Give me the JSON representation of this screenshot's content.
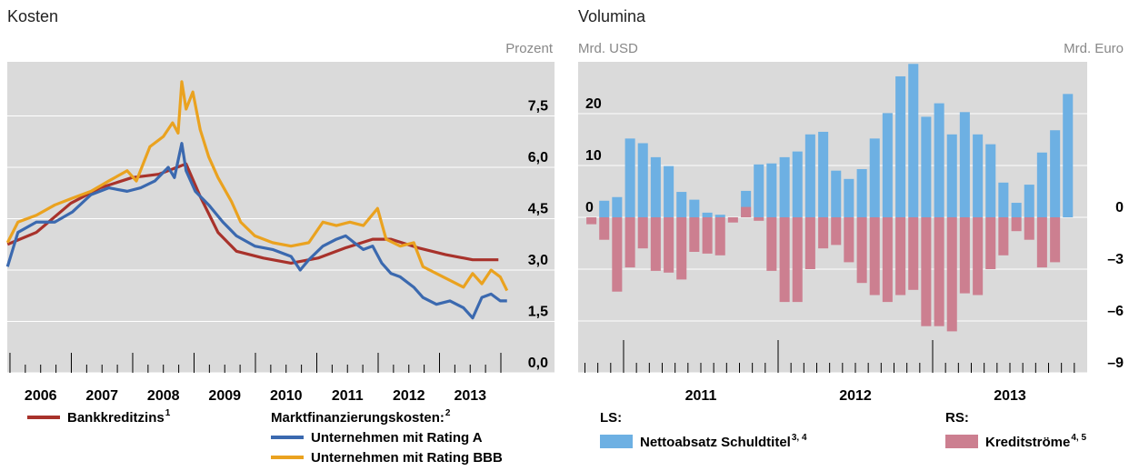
{
  "chart_data": [
    {
      "type": "line",
      "title": "Kosten",
      "y_unit": "Prozent",
      "xlim": [
        2005.956,
        2014.874
      ],
      "xticks": [
        {
          "value": 2006.5,
          "label": "2006"
        },
        {
          "value": 2007.5,
          "label": "2007"
        },
        {
          "value": 2008.5,
          "label": "2008"
        },
        {
          "value": 2009.5,
          "label": "2009"
        },
        {
          "value": 2010.5,
          "label": "2010"
        },
        {
          "value": 2011.5,
          "label": "2011"
        },
        {
          "value": 2012.5,
          "label": "2012"
        },
        {
          "value": 2013.5,
          "label": "2013"
        }
      ],
      "ylim": [
        0,
        9.08
      ],
      "yticks": [
        {
          "value": 0,
          "label": "0,0"
        },
        {
          "value": 1.5,
          "label": "1,5"
        },
        {
          "value": 3,
          "label": "3,0"
        },
        {
          "value": 4.5,
          "label": "4,5"
        },
        {
          "value": 6,
          "label": "6,0"
        },
        {
          "value": 7.5,
          "label": "7,5"
        }
      ],
      "grid": true,
      "legend_heading": "Marktfinanzierungskosten:",
      "legend_heading_note": "2",
      "series": [
        {
          "name": "Bankkreditzins",
          "note": "1",
          "color": "#a8322b",
          "x": [
            2005.96,
            2006.43,
            2006.99,
            2007.47,
            2007.99,
            2008.43,
            2008.87,
            2009.1,
            2009.39,
            2009.69,
            2010.13,
            2010.58,
            2011.02,
            2011.47,
            2011.91,
            2012.21,
            2012.65,
            2013.1,
            2013.54,
            2013.96
          ],
          "values": [
            3.75,
            4.1,
            4.95,
            5.4,
            5.7,
            5.8,
            6.1,
            5.15,
            4.1,
            3.55,
            3.35,
            3.2,
            3.35,
            3.65,
            3.9,
            3.9,
            3.65,
            3.45,
            3.3,
            3.3
          ]
        },
        {
          "name": "Unternehmen mit Rating A",
          "color": "#3b69af",
          "x": [
            2005.96,
            2006.13,
            2006.43,
            2006.73,
            2007.02,
            2007.32,
            2007.61,
            2007.91,
            2008.13,
            2008.36,
            2008.58,
            2008.68,
            2008.8,
            2008.87,
            2009.02,
            2009.24,
            2009.47,
            2009.69,
            2009.99,
            2010.28,
            2010.58,
            2010.73,
            2010.87,
            2011.1,
            2011.32,
            2011.47,
            2011.61,
            2011.76,
            2011.91,
            2012.06,
            2012.21,
            2012.36,
            2012.58,
            2012.73,
            2012.95,
            2013.17,
            2013.39,
            2013.54,
            2013.69,
            2013.84,
            2013.99,
            2014.1
          ],
          "values": [
            3.1,
            4.1,
            4.4,
            4.4,
            4.7,
            5.2,
            5.4,
            5.3,
            5.4,
            5.6,
            6.0,
            5.7,
            6.7,
            5.9,
            5.3,
            4.9,
            4.4,
            4.0,
            3.7,
            3.6,
            3.4,
            3.0,
            3.3,
            3.7,
            3.9,
            4.0,
            3.8,
            3.6,
            3.7,
            3.2,
            2.9,
            2.8,
            2.5,
            2.2,
            2.0,
            2.1,
            1.9,
            1.6,
            2.2,
            2.3,
            2.1,
            2.1
          ]
        },
        {
          "name": "Unternehmen mit Rating BBB",
          "color": "#eaa21f",
          "x": [
            2005.96,
            2006.13,
            2006.43,
            2006.73,
            2007.02,
            2007.32,
            2007.61,
            2007.91,
            2008.06,
            2008.28,
            2008.5,
            2008.65,
            2008.74,
            2008.8,
            2008.87,
            2008.98,
            2009.1,
            2009.24,
            2009.39,
            2009.61,
            2009.76,
            2009.99,
            2010.28,
            2010.58,
            2010.87,
            2011.1,
            2011.32,
            2011.54,
            2011.76,
            2011.99,
            2012.13,
            2012.36,
            2012.58,
            2012.73,
            2012.95,
            2013.17,
            2013.39,
            2013.54,
            2013.69,
            2013.84,
            2013.99,
            2014.1
          ],
          "values": [
            3.8,
            4.4,
            4.6,
            4.9,
            5.1,
            5.3,
            5.6,
            5.9,
            5.6,
            6.6,
            6.9,
            7.3,
            7.0,
            8.5,
            7.7,
            8.2,
            7.1,
            6.3,
            5.7,
            5.0,
            4.4,
            4.0,
            3.8,
            3.7,
            3.8,
            4.4,
            4.3,
            4.4,
            4.3,
            4.8,
            3.9,
            3.7,
            3.8,
            3.1,
            2.9,
            2.7,
            2.5,
            2.9,
            2.6,
            3.0,
            2.8,
            2.4
          ]
        }
      ]
    },
    {
      "type": "bar",
      "title": "Volumina",
      "y_unit": "Mrd. USD",
      "y2_unit": "Mrd. Euro",
      "xlim": [
        2010.706,
        2014.0
      ],
      "xticks": [
        {
          "value": 2011.5,
          "label": "2011"
        },
        {
          "value": 2012.5,
          "label": "2012"
        },
        {
          "value": 2013.5,
          "label": "2013"
        }
      ],
      "ylim": [
        -30,
        30
      ],
      "yticks": [
        0,
        10,
        20
      ],
      "y2lim": [
        -9,
        9
      ],
      "y2ticks": [
        0,
        {
          "value": -3,
          "label": "–3"
        },
        {
          "value": -6,
          "label": "–6"
        },
        {
          "value": -9,
          "label": "–9"
        }
      ],
      "grid": true,
      "x": [
        2010.792,
        2010.875,
        2010.958,
        2011.042,
        2011.125,
        2011.208,
        2011.292,
        2011.375,
        2011.458,
        2011.542,
        2011.625,
        2011.708,
        2011.792,
        2011.875,
        2011.958,
        2012.042,
        2012.125,
        2012.208,
        2012.292,
        2012.375,
        2012.458,
        2012.542,
        2012.625,
        2012.708,
        2012.792,
        2012.875,
        2012.958,
        2013.042,
        2013.125,
        2013.208,
        2013.292,
        2013.375,
        2013.458,
        2013.542,
        2013.625,
        2013.708,
        2013.792,
        2013.875
      ],
      "series": [
        {
          "group": "LS:",
          "name": "Nettoabsatz Schuldtitel",
          "note": "3, 4",
          "color": "#6db0e3",
          "values": [
            null,
            3.2,
            3.9,
            15.2,
            14.3,
            11.6,
            9.9,
            4.9,
            3.4,
            0.9,
            0.5,
            0,
            5.1,
            10.2,
            10.4,
            11.6,
            12.7,
            16.0,
            16.5,
            9.0,
            7.4,
            9.3,
            15.2,
            20.1,
            27.2,
            29.6,
            19.4,
            22.0,
            16.0,
            20.3,
            16.0,
            14.1,
            6.7,
            2.8,
            6.3,
            12.5,
            16.8,
            23.8
          ]
        },
        {
          "group": "RS:",
          "name": "Kreditströme",
          "note": "4, 5",
          "color": "#cc7f90",
          "axis": "y2",
          "values": [
            -0.4,
            -1.3,
            -4.3,
            -2.9,
            -1.8,
            -3.1,
            -3.2,
            -3.6,
            -2.0,
            -2.1,
            -2.2,
            -0.3,
            0.6,
            -0.2,
            -3.1,
            -4.9,
            -4.9,
            -3.0,
            -1.8,
            -1.6,
            -2.6,
            -3.8,
            -4.5,
            -4.9,
            -4.5,
            -4.2,
            -6.3,
            -6.3,
            -6.6,
            -4.4,
            -4.5,
            -3.0,
            -2.2,
            -0.8,
            -1.3,
            -2.9,
            -2.6,
            null
          ]
        }
      ]
    }
  ]
}
